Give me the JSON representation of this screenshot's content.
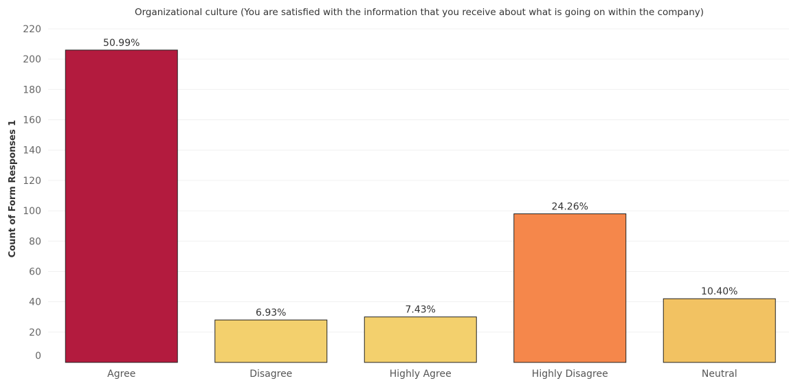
{
  "chart_data": {
    "type": "bar",
    "title": "Organizational culture (You are satisfied with the information that you receive about what is going on within the company)",
    "xlabel": "",
    "ylabel": "Count of Form Responses 1",
    "categories": [
      "Agree",
      "Disagree",
      "Highly Agree",
      "Highly Disagree",
      "Neutral"
    ],
    "values": [
      206,
      28,
      30,
      98,
      42
    ],
    "data_labels": [
      "50.99%",
      "6.93%",
      "7.43%",
      "24.26%",
      "10.40%"
    ],
    "colors": [
      "#b31b3e",
      "#f3d06d",
      "#f3d06d",
      "#f5874b",
      "#f2c262"
    ],
    "ylim": [
      0,
      220
    ],
    "yticks": [
      "0",
      "20",
      "40",
      "60",
      "80",
      "100",
      "120",
      "140",
      "160",
      "180",
      "200",
      "220"
    ],
    "grid": true,
    "legend": "none"
  }
}
